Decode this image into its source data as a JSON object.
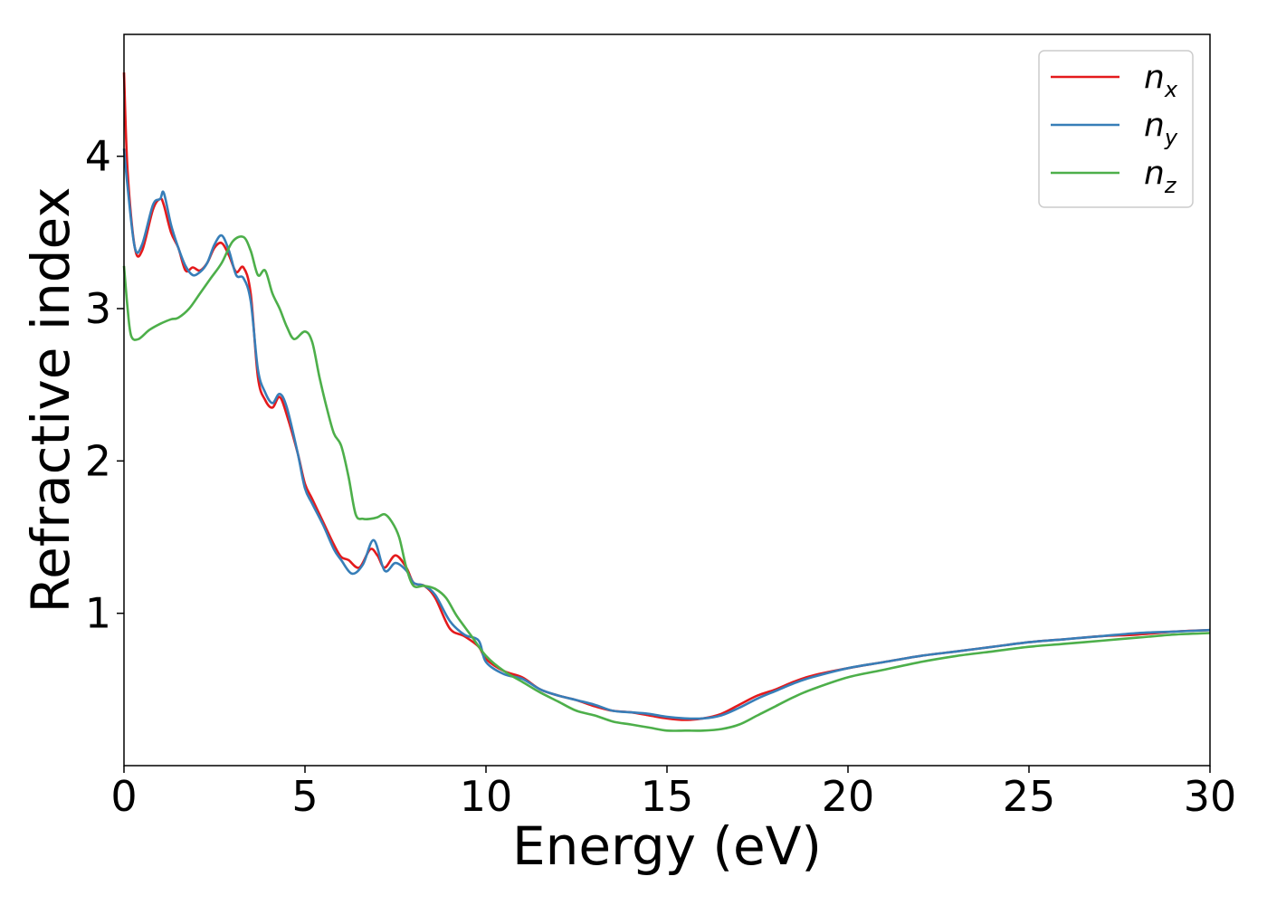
{
  "chart_data": {
    "type": "line",
    "title": "",
    "xlabel": "Energy (eV)",
    "ylabel": "Refractive index",
    "xlim": [
      0,
      30
    ],
    "ylim": [
      0.0,
      4.8
    ],
    "xticks": [
      0,
      5,
      10,
      15,
      20,
      25,
      30
    ],
    "yticks": [
      1,
      2,
      3,
      4
    ],
    "grid": false,
    "legend_position": "top-right",
    "series": [
      {
        "name": "n_x",
        "label_base": "n",
        "label_sub": "x",
        "color": "#e41a1c",
        "x": [
          0,
          0.1,
          0.3,
          0.5,
          0.8,
          1.0,
          1.1,
          1.3,
          1.5,
          1.7,
          1.9,
          2.1,
          2.3,
          2.5,
          2.7,
          2.9,
          3.1,
          3.3,
          3.5,
          3.7,
          3.9,
          4.1,
          4.3,
          4.5,
          4.8,
          5.0,
          5.2,
          5.5,
          5.8,
          6.0,
          6.2,
          6.5,
          6.8,
          7.0,
          7.2,
          7.5,
          7.8,
          8.0,
          8.3,
          8.6,
          9.0,
          9.4,
          9.8,
          10.0,
          10.5,
          11.0,
          11.5,
          12.0,
          12.5,
          13.0,
          13.5,
          14.0,
          14.5,
          15.0,
          15.5,
          16.0,
          16.5,
          17.0,
          17.5,
          18.0,
          18.5,
          19.0,
          20.0,
          21.0,
          22.0,
          23.0,
          24.0,
          25.0,
          26.0,
          27.0,
          28.0,
          29.0,
          30.0
        ],
        "values": [
          4.55,
          3.9,
          3.4,
          3.38,
          3.65,
          3.72,
          3.68,
          3.5,
          3.4,
          3.25,
          3.27,
          3.25,
          3.3,
          3.4,
          3.43,
          3.35,
          3.24,
          3.27,
          3.1,
          2.55,
          2.4,
          2.35,
          2.42,
          2.3,
          2.05,
          1.85,
          1.75,
          1.6,
          1.45,
          1.37,
          1.35,
          1.3,
          1.42,
          1.38,
          1.3,
          1.38,
          1.3,
          1.2,
          1.18,
          1.1,
          0.9,
          0.85,
          0.78,
          0.7,
          0.62,
          0.58,
          0.5,
          0.46,
          0.43,
          0.39,
          0.36,
          0.35,
          0.33,
          0.31,
          0.3,
          0.31,
          0.34,
          0.4,
          0.46,
          0.5,
          0.55,
          0.59,
          0.64,
          0.68,
          0.72,
          0.75,
          0.78,
          0.81,
          0.83,
          0.85,
          0.86,
          0.88,
          0.89
        ]
      },
      {
        "name": "n_y",
        "label_base": "n",
        "label_sub": "y",
        "color": "#377eb8",
        "x": [
          0,
          0.1,
          0.3,
          0.5,
          0.8,
          1.0,
          1.1,
          1.3,
          1.5,
          1.7,
          1.9,
          2.1,
          2.3,
          2.5,
          2.7,
          2.9,
          3.1,
          3.3,
          3.5,
          3.7,
          3.9,
          4.1,
          4.3,
          4.5,
          4.8,
          5.0,
          5.2,
          5.5,
          5.8,
          6.0,
          6.3,
          6.6,
          6.9,
          7.2,
          7.5,
          7.8,
          8.0,
          8.3,
          8.6,
          9.0,
          9.4,
          9.8,
          10.0,
          10.5,
          11.0,
          11.5,
          12.0,
          12.5,
          13.0,
          13.5,
          14.0,
          14.5,
          15.0,
          15.5,
          16.0,
          16.5,
          17.0,
          17.5,
          18.0,
          18.5,
          19.0,
          20.0,
          21.0,
          22.0,
          23.0,
          24.0,
          25.0,
          26.0,
          27.0,
          28.0,
          29.0,
          30.0
        ],
        "values": [
          4.05,
          3.8,
          3.4,
          3.42,
          3.68,
          3.72,
          3.76,
          3.55,
          3.4,
          3.28,
          3.22,
          3.24,
          3.3,
          3.42,
          3.48,
          3.38,
          3.22,
          3.2,
          3.05,
          2.6,
          2.45,
          2.38,
          2.44,
          2.35,
          2.05,
          1.82,
          1.72,
          1.58,
          1.42,
          1.35,
          1.26,
          1.32,
          1.48,
          1.28,
          1.33,
          1.28,
          1.2,
          1.18,
          1.12,
          0.95,
          0.86,
          0.82,
          0.68,
          0.6,
          0.57,
          0.5,
          0.46,
          0.43,
          0.4,
          0.36,
          0.35,
          0.34,
          0.32,
          0.31,
          0.31,
          0.33,
          0.38,
          0.44,
          0.49,
          0.54,
          0.58,
          0.64,
          0.68,
          0.72,
          0.75,
          0.78,
          0.81,
          0.83,
          0.85,
          0.87,
          0.88,
          0.89
        ]
      },
      {
        "name": "n_z",
        "label_base": "n",
        "label_sub": "z",
        "color": "#4daf4a",
        "x": [
          0,
          0.1,
          0.2,
          0.4,
          0.7,
          1.0,
          1.3,
          1.5,
          1.8,
          2.1,
          2.4,
          2.7,
          3.0,
          3.3,
          3.5,
          3.7,
          3.9,
          4.1,
          4.3,
          4.5,
          4.7,
          5.0,
          5.2,
          5.4,
          5.6,
          5.8,
          6.0,
          6.2,
          6.4,
          6.6,
          6.8,
          7.0,
          7.2,
          7.4,
          7.6,
          7.8,
          8.0,
          8.3,
          8.6,
          8.9,
          9.2,
          9.6,
          10.0,
          10.5,
          11.0,
          11.5,
          12.0,
          12.5,
          13.0,
          13.5,
          14.0,
          14.5,
          15.0,
          15.5,
          16.0,
          16.5,
          17.0,
          17.5,
          18.0,
          18.5,
          19.0,
          20.0,
          21.0,
          22.0,
          23.0,
          24.0,
          25.0,
          26.0,
          27.0,
          28.0,
          29.0,
          30.0
        ],
        "values": [
          3.28,
          3.0,
          2.82,
          2.8,
          2.86,
          2.9,
          2.93,
          2.94,
          3.0,
          3.1,
          3.2,
          3.3,
          3.44,
          3.47,
          3.38,
          3.22,
          3.25,
          3.1,
          3.0,
          2.88,
          2.8,
          2.85,
          2.78,
          2.55,
          2.35,
          2.18,
          2.1,
          1.9,
          1.65,
          1.62,
          1.62,
          1.63,
          1.65,
          1.6,
          1.5,
          1.3,
          1.18,
          1.18,
          1.16,
          1.1,
          0.98,
          0.85,
          0.72,
          0.62,
          0.55,
          0.48,
          0.42,
          0.36,
          0.33,
          0.29,
          0.27,
          0.25,
          0.23,
          0.23,
          0.23,
          0.24,
          0.27,
          0.33,
          0.39,
          0.45,
          0.5,
          0.58,
          0.63,
          0.68,
          0.72,
          0.75,
          0.78,
          0.8,
          0.82,
          0.84,
          0.86,
          0.87
        ]
      }
    ]
  }
}
